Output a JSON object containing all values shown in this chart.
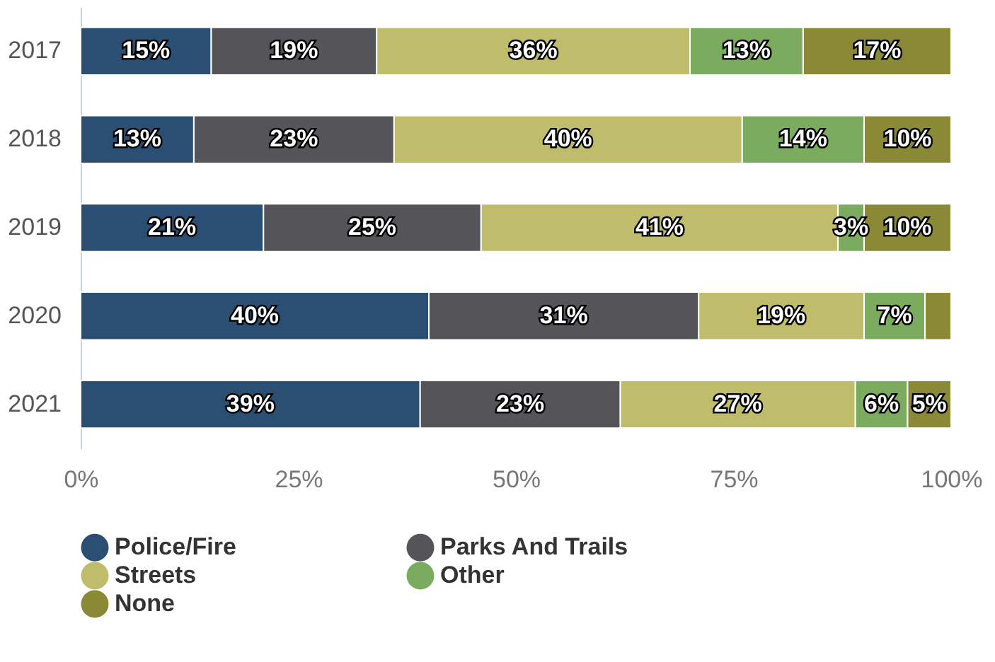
{
  "chart_data": {
    "type": "bar",
    "orientation": "horizontal",
    "stacked": true,
    "categories": [
      "2017",
      "2018",
      "2019",
      "2020",
      "2021"
    ],
    "series": [
      {
        "name": "Police/Fire",
        "color": "#2b4f73",
        "values": [
          15,
          13,
          21,
          40,
          39
        ],
        "value_labels": [
          "15%",
          "13%",
          "21%",
          "40%",
          "39%"
        ]
      },
      {
        "name": "Parks And Trails",
        "color": "#545459",
        "values": [
          19,
          23,
          25,
          31,
          23
        ],
        "value_labels": [
          "19%",
          "23%",
          "25%",
          "31%",
          "23%"
        ]
      },
      {
        "name": "Streets",
        "color": "#bfbc6b",
        "values": [
          36,
          40,
          41,
          19,
          27
        ],
        "value_labels": [
          "36%",
          "40%",
          "41%",
          "19%",
          "27%"
        ]
      },
      {
        "name": "Other",
        "color": "#7bab5e",
        "values": [
          13,
          14,
          3,
          7,
          6
        ],
        "value_labels": [
          "13%",
          "14%",
          "3%",
          "7%",
          "6%"
        ]
      },
      {
        "name": "None",
        "color": "#8a8935",
        "values": [
          17,
          10,
          10,
          3,
          5
        ],
        "value_labels": [
          "17%",
          "10%",
          "10%",
          null,
          "5%"
        ]
      }
    ],
    "xlim": [
      0,
      100
    ],
    "xticks": [
      {
        "value": 0,
        "label": "0%"
      },
      {
        "value": 25,
        "label": "25%"
      },
      {
        "value": 50,
        "label": "50%"
      },
      {
        "value": 75,
        "label": "75%"
      },
      {
        "value": 100,
        "label": "100%"
      }
    ],
    "grid": false,
    "legend": "bottom"
  }
}
